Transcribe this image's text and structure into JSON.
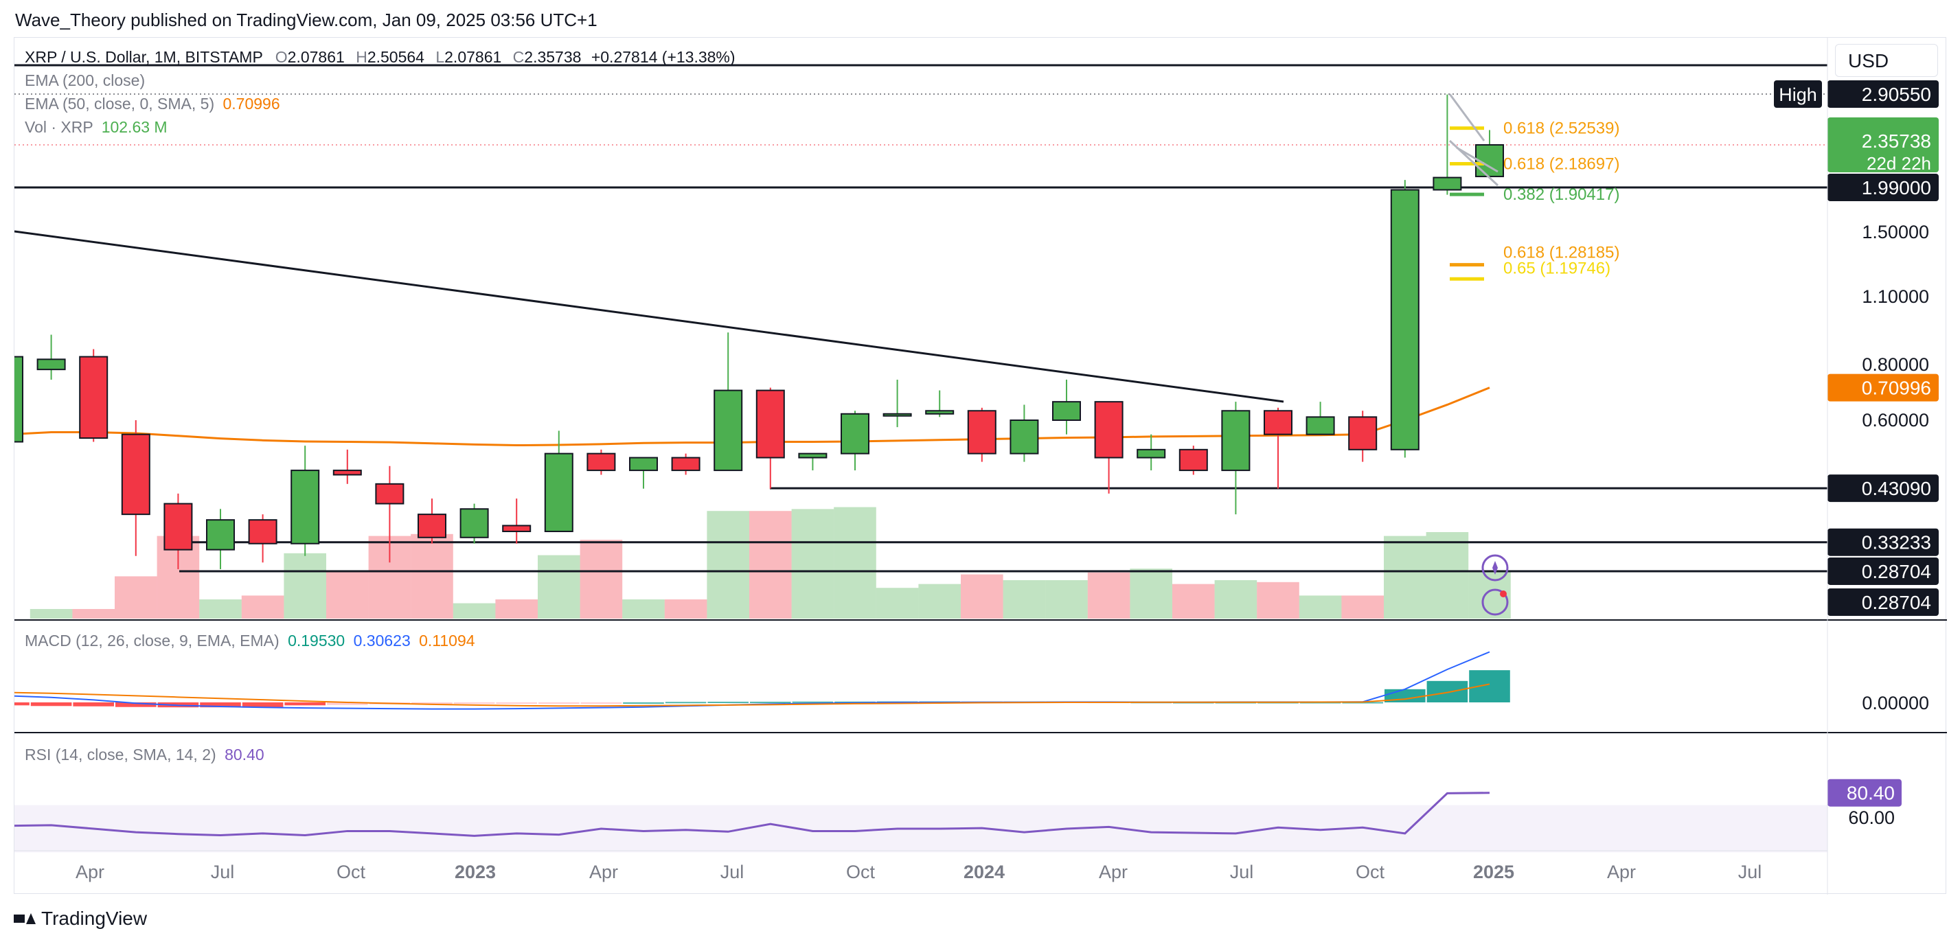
{
  "header": {
    "publisher_line": "Wave_Theory published on TradingView.com, Jan 09, 2025 03:56 UTC+1"
  },
  "toolbar": {
    "currency": "USD"
  },
  "footer": {
    "brand": "TradingView"
  },
  "legend": {
    "symbol": "XRP / U.S. Dollar, 1M, BITSTAMP",
    "o_label": "O",
    "o": "2.07861",
    "h_label": "H",
    "h": "2.50564",
    "l_label": "L",
    "l": "2.07861",
    "c_label": "C",
    "c": "2.35738",
    "change": "+0.27814 (+13.38%)",
    "ema200": "EMA (200, close)",
    "ema50": "EMA (50, close, 0, SMA, 5)",
    "ema50_value": "0.70996",
    "vol": "Vol · XRP",
    "vol_value": "102.63 M",
    "macd": "MACD (12, 26, close, 9, EMA, EMA)",
    "macd_v1": "0.19530",
    "macd_v2": "0.30623",
    "macd_v3": "0.11094",
    "rsi": "RSI (14, close, SMA, 14, 2)",
    "rsi_value": "80.40"
  },
  "colors": {
    "up": "#4caf50",
    "down": "#f23645",
    "ema": "#f57c00",
    "macd_line": "#2962ff",
    "signal_line": "#f57c00",
    "rsi": "#7e57c2",
    "fib_gold": "#f5d90a",
    "fib_orange": "#f59e0b",
    "fib_green": "#4caf50"
  },
  "chart_data": {
    "type": "candlestick",
    "timeframe": "1M",
    "x_ticks": [
      "Apr",
      "Jul",
      "Oct",
      "2023",
      "Apr",
      "Jul",
      "Oct",
      "2024",
      "Apr",
      "Jul",
      "Oct",
      "2025",
      "Apr",
      "Jul"
    ],
    "y_ticks": [
      "1.50000",
      "1.10000",
      "0.80000",
      "0.60000",
      "0.00000",
      "60.00"
    ],
    "candles": [
      {
        "o": 0.54,
        "h": 0.86,
        "l": 0.52,
        "c": 0.83
      },
      {
        "o": 0.78,
        "h": 0.92,
        "l": 0.74,
        "c": 0.82
      },
      {
        "o": 0.83,
        "h": 0.86,
        "l": 0.54,
        "c": 0.55
      },
      {
        "o": 0.56,
        "h": 0.6,
        "l": 0.31,
        "c": 0.38
      },
      {
        "o": 0.4,
        "h": 0.42,
        "l": 0.29,
        "c": 0.32
      },
      {
        "o": 0.32,
        "h": 0.39,
        "l": 0.29,
        "c": 0.37
      },
      {
        "o": 0.37,
        "h": 0.38,
        "l": 0.3,
        "c": 0.33
      },
      {
        "o": 0.33,
        "h": 0.53,
        "l": 0.31,
        "c": 0.47
      },
      {
        "o": 0.47,
        "h": 0.52,
        "l": 0.44,
        "c": 0.46
      },
      {
        "o": 0.44,
        "h": 0.48,
        "l": 0.3,
        "c": 0.4
      },
      {
        "o": 0.38,
        "h": 0.41,
        "l": 0.33,
        "c": 0.34
      },
      {
        "o": 0.34,
        "h": 0.4,
        "l": 0.33,
        "c": 0.39
      },
      {
        "o": 0.36,
        "h": 0.41,
        "l": 0.33,
        "c": 0.35
      },
      {
        "o": 0.35,
        "h": 0.57,
        "l": 0.35,
        "c": 0.51
      },
      {
        "o": 0.51,
        "h": 0.52,
        "l": 0.46,
        "c": 0.47
      },
      {
        "o": 0.47,
        "h": 0.5,
        "l": 0.43,
        "c": 0.5
      },
      {
        "o": 0.5,
        "h": 0.51,
        "l": 0.46,
        "c": 0.47
      },
      {
        "o": 0.47,
        "h": 0.93,
        "l": 0.47,
        "c": 0.7
      },
      {
        "o": 0.7,
        "h": 0.71,
        "l": 0.43,
        "c": 0.5
      },
      {
        "o": 0.5,
        "h": 0.51,
        "l": 0.47,
        "c": 0.51
      },
      {
        "o": 0.51,
        "h": 0.63,
        "l": 0.47,
        "c": 0.62
      },
      {
        "o": 0.62,
        "h": 0.74,
        "l": 0.58,
        "c": 0.62
      },
      {
        "o": 0.62,
        "h": 0.7,
        "l": 0.61,
        "c": 0.63
      },
      {
        "o": 0.63,
        "h": 0.64,
        "l": 0.49,
        "c": 0.51
      },
      {
        "o": 0.51,
        "h": 0.65,
        "l": 0.49,
        "c": 0.6
      },
      {
        "o": 0.6,
        "h": 0.74,
        "l": 0.56,
        "c": 0.66
      },
      {
        "o": 0.66,
        "h": 0.66,
        "l": 0.42,
        "c": 0.5
      },
      {
        "o": 0.5,
        "h": 0.56,
        "l": 0.47,
        "c": 0.52
      },
      {
        "o": 0.52,
        "h": 0.53,
        "l": 0.46,
        "c": 0.47
      },
      {
        "o": 0.47,
        "h": 0.66,
        "l": 0.38,
        "c": 0.63
      },
      {
        "o": 0.63,
        "h": 0.64,
        "l": 0.43,
        "c": 0.56
      },
      {
        "o": 0.56,
        "h": 0.66,
        "l": 0.56,
        "c": 0.61
      },
      {
        "o": 0.61,
        "h": 0.63,
        "l": 0.49,
        "c": 0.52
      },
      {
        "o": 0.52,
        "h": 2.05,
        "l": 0.5,
        "c": 1.96
      },
      {
        "o": 1.96,
        "h": 2.9,
        "l": 1.9,
        "c": 2.07
      },
      {
        "o": 2.07861,
        "h": 2.50564,
        "l": 2.07861,
        "c": 2.35738
      }
    ],
    "ema50": [
      0.56,
      0.566,
      0.566,
      0.563,
      0.556,
      0.549,
      0.544,
      0.541,
      0.54,
      0.539,
      0.536,
      0.533,
      0.531,
      0.532,
      0.534,
      0.537,
      0.538,
      0.538,
      0.54,
      0.54,
      0.541,
      0.543,
      0.545,
      0.547,
      0.549,
      0.551,
      0.552,
      0.554,
      0.555,
      0.556,
      0.557,
      0.558,
      0.56,
      0.6,
      0.65,
      0.70996
    ],
    "volume": [
      0.0,
      0.05,
      0.05,
      0.22,
      0.43,
      0.1,
      0.12,
      0.34,
      0.25,
      0.43,
      0.44,
      0.08,
      0.1,
      0.33,
      0.41,
      0.1,
      0.1,
      0.56,
      0.56,
      0.57,
      0.58,
      0.16,
      0.18,
      0.23,
      0.2,
      0.2,
      0.24,
      0.26,
      0.18,
      0.2,
      0.19,
      0.12,
      0.12,
      0.43,
      0.45,
      0.25
    ],
    "macd_hist": [
      -0.018,
      -0.022,
      -0.024,
      -0.028,
      -0.03,
      -0.03,
      -0.032,
      -0.018,
      -0.016,
      -0.012,
      -0.01,
      -0.008,
      -0.006,
      -0.004,
      -0.002,
      0.0,
      0.003,
      0.004,
      0.004,
      0.005,
      0.005,
      0.006,
      0.006,
      0.005,
      0.005,
      0.005,
      0.004,
      0.003,
      0.002,
      0.002,
      0.002,
      0.002,
      0.002,
      0.08,
      0.13,
      0.1953
    ],
    "macd_line": [
      0.04,
      0.03,
      0.015,
      -0.005,
      -0.018,
      -0.025,
      -0.03,
      -0.034,
      -0.036,
      -0.038,
      -0.04,
      -0.04,
      -0.038,
      -0.035,
      -0.032,
      -0.028,
      -0.022,
      -0.016,
      -0.01,
      -0.006,
      -0.003,
      0.0,
      0.0,
      0.001,
      0.001,
      0.002,
      0.002,
      0.001,
      0.001,
      0.002,
      0.002,
      0.002,
      0.003,
      0.08,
      0.2,
      0.30623
    ],
    "signal_line": [
      0.06,
      0.055,
      0.048,
      0.04,
      0.032,
      0.024,
      0.016,
      0.008,
      0.0,
      -0.006,
      -0.012,
      -0.016,
      -0.02,
      -0.022,
      -0.022,
      -0.02,
      -0.018,
      -0.016,
      -0.014,
      -0.011,
      -0.008,
      -0.006,
      -0.004,
      -0.002,
      -0.001,
      0.0,
      0.0,
      0.001,
      0.001,
      0.001,
      0.001,
      0.002,
      0.002,
      0.02,
      0.06,
      0.11094
    ],
    "rsi": [
      52.5,
      53,
      50,
      47,
      45.5,
      44.5,
      46,
      44.5,
      48,
      48,
      46,
      44,
      46,
      45,
      50,
      48,
      49,
      47.5,
      54,
      48,
      48,
      50,
      50,
      50.5,
      47,
      50,
      51.5,
      47,
      46.5,
      46,
      51,
      49,
      51,
      46,
      80,
      80.4
    ],
    "levels": [
      {
        "value": 2.9055,
        "label": "2.90550",
        "tag": "High"
      },
      {
        "value": 1.99,
        "label": "1.99000"
      },
      {
        "value": 0.4309,
        "label": "0.43090"
      },
      {
        "value": 0.33233,
        "label": "0.33233"
      },
      {
        "value": 0.28704,
        "label": "0.28704"
      }
    ],
    "price_tags": [
      {
        "value": 2.35738,
        "label": "2.35738",
        "sub": "22d 22h"
      },
      {
        "value": 0.70996,
        "label": "0.70996"
      }
    ],
    "secondary_tags": [
      {
        "label": "0.28704"
      }
    ],
    "fib_upper": [
      {
        "value": 2.52539,
        "label": "0.618 (2.52539)"
      },
      {
        "value": 2.18697,
        "label": "0.618 (2.18697)"
      },
      {
        "value": 1.90417,
        "label": "0.382 (1.90417)"
      }
    ],
    "fib_lower": [
      {
        "value": 1.28185,
        "label": "0.618 (1.28185)"
      },
      {
        "value": 1.19746,
        "label": "0.65 (1.19746)"
      }
    ],
    "macd_tag": "0.00000",
    "rsi_tag": "80.40",
    "rsi_band": [
      30,
      70
    ]
  }
}
